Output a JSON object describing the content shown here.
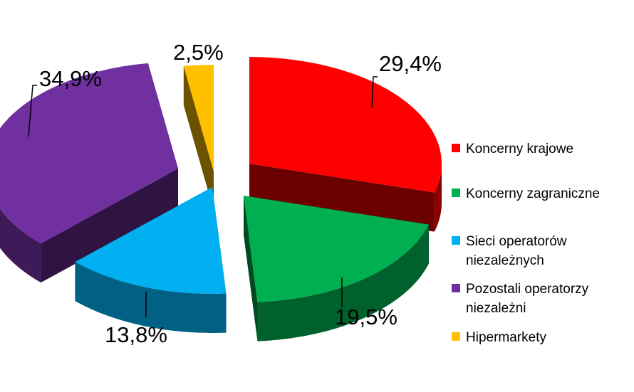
{
  "chart_data": {
    "type": "pie",
    "categories": [
      "Koncerny krajowe",
      "Koncerny zagraniczne",
      "Sieci operatorów niezależnych",
      "Pozostali operatorzy niezależni",
      "Hipermarkety"
    ],
    "values": [
      29.4,
      19.5,
      13.8,
      34.9,
      2.5
    ],
    "value_labels": [
      "29,4%",
      "19,5%",
      "13,8%",
      "34,9%",
      "2,5%"
    ],
    "colors": [
      "#ff0000",
      "#00b050",
      "#00b0f0",
      "#7030a0",
      "#ffc000"
    ],
    "legend_placement": "right",
    "exploded": true,
    "style": "3d"
  },
  "legend": {
    "items": [
      {
        "label": "Koncerny krajowe",
        "color": "#ff0000"
      },
      {
        "label": "Koncerny zagraniczne",
        "color": "#00b050"
      },
      {
        "label": "Sieci operatorów niezależnych",
        "color": "#00b0f0"
      },
      {
        "label": "Pozostali operatorzy niezależni",
        "color": "#7030a0"
      },
      {
        "label": "Hipermarkety",
        "color": "#ffc000"
      }
    ]
  }
}
